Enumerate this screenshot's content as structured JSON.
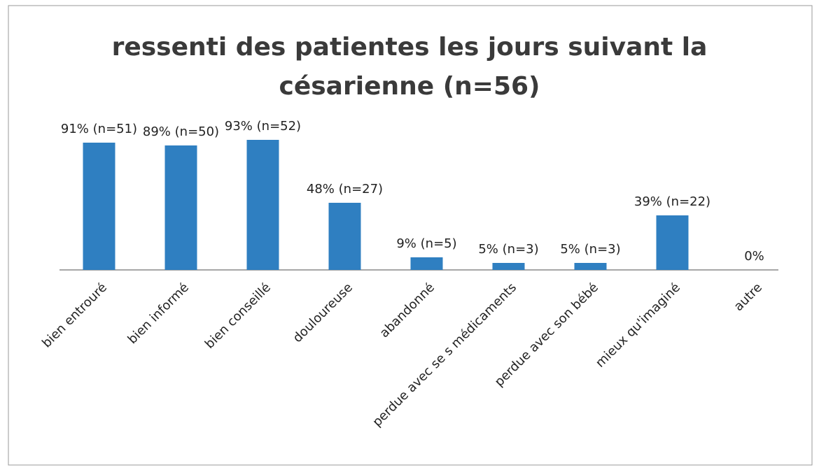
{
  "chart_data": {
    "type": "bar",
    "title": "ressenti des patientes les jours suivant la césarienne (n=56)",
    "categories": [
      "bien entrouré",
      "bien informé",
      "bien conseillé",
      "douloureuse",
      "abandonné",
      "perdue avec se s médicaments",
      "perdue avec son bébé",
      "mieux qu'imaginé",
      "autre"
    ],
    "values": [
      91,
      89,
      93,
      48,
      9,
      5,
      5,
      39,
      0
    ],
    "value_labels": [
      "91% (n=51)",
      "89% (n=50)",
      "93% (n=52)",
      "48% (n=27)",
      "9% (n=5)",
      "5% (n=3)",
      "5% (n=3)",
      "39% (n=22)",
      "0%"
    ],
    "color": "#2f7fc1"
  }
}
